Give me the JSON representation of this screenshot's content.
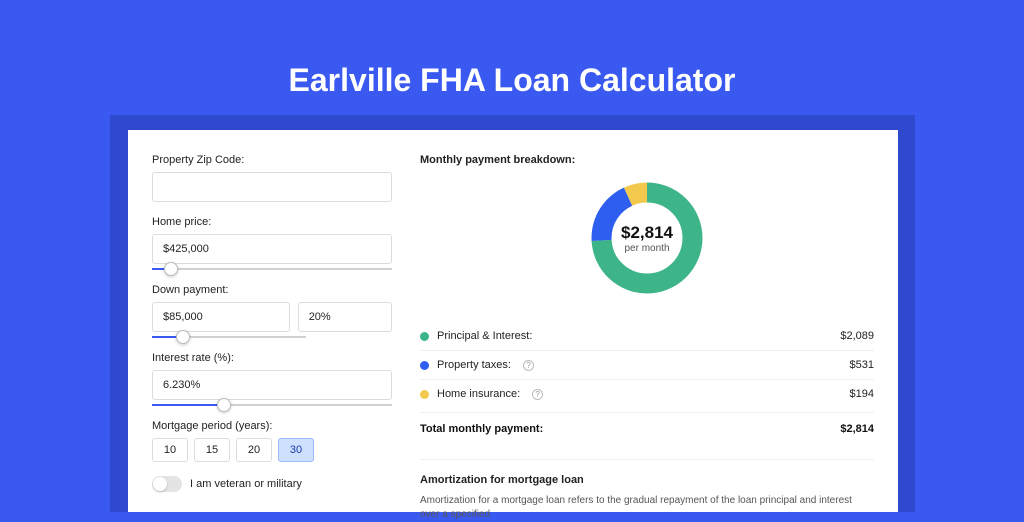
{
  "page_title": "Earlville FHA Loan Calculator",
  "colors": {
    "page_bg": "#3a59f0",
    "card_bg": "#ffffff",
    "shadow_bg": "#2f49ce",
    "accent": "#3a59f0",
    "pi": "#3eb489",
    "tax": "#2d5ef0",
    "ins": "#f2c94c",
    "border": "#dcdcdc",
    "text": "#222222"
  },
  "form": {
    "zip_label": "Property Zip Code:",
    "zip_value": "",
    "price_label": "Home price:",
    "price_value": "$425,000",
    "price_slider_pct": 8,
    "down_label": "Down payment:",
    "down_value": "$85,000",
    "down_pct": "20%",
    "down_slider_pct": 20,
    "rate_label": "Interest rate (%):",
    "rate_value": "6.230%",
    "rate_slider_pct": 30,
    "period_label": "Mortgage period (years):",
    "period_options": [
      "10",
      "15",
      "20",
      "30"
    ],
    "period_selected": "30",
    "veteran_label": "I am veteran or military",
    "veteran_on": false
  },
  "breakdown": {
    "title": "Monthly payment breakdown:",
    "center_value": "$2,814",
    "center_sub": "per month",
    "donut": {
      "pi_pct": 74,
      "tax_pct": 19,
      "ins_pct": 7
    },
    "rows": [
      {
        "label": "Principal & Interest:",
        "value": "$2,089",
        "color": "pi",
        "help": false
      },
      {
        "label": "Property taxes:",
        "value": "$531",
        "color": "tax",
        "help": true
      },
      {
        "label": "Home insurance:",
        "value": "$194",
        "color": "ins",
        "help": true
      }
    ],
    "total_label": "Total monthly payment:",
    "total_value": "$2,814"
  },
  "amortization": {
    "title": "Amortization for mortgage loan",
    "text": "Amortization for a mortgage loan refers to the gradual repayment of the loan principal and interest over a specified"
  }
}
